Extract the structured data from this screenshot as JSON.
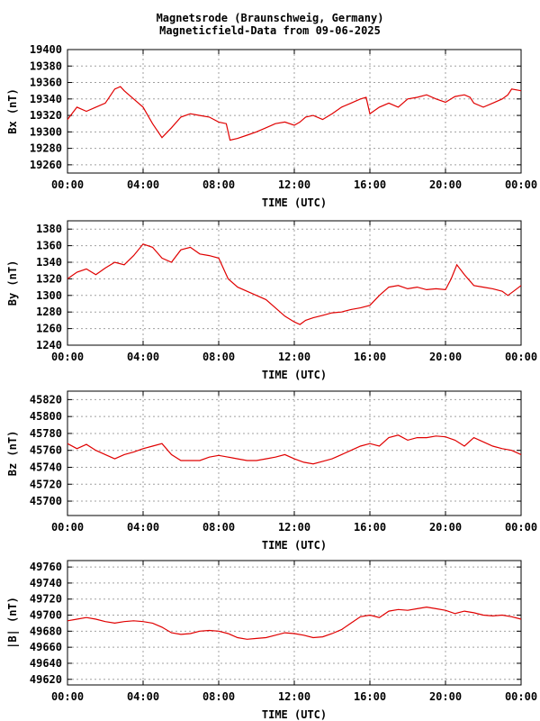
{
  "title_line1": "Magnetsrode (Braunschweig, Germany)",
  "title_line2": "Magneticfield-Data from 09-06-2025",
  "chart_data": [
    {
      "type": "line",
      "xlabel": "TIME (UTC)",
      "ylabel": "Bx (nT)",
      "x_ticks": [
        "00:00",
        "04:00",
        "08:00",
        "12:00",
        "16:00",
        "20:00",
        "00:00"
      ],
      "xlim": [
        0,
        24
      ],
      "ylim": [
        19250,
        19400
      ],
      "y_ticks": [
        19260,
        19280,
        19300,
        19320,
        19340,
        19360,
        19380,
        19400
      ],
      "grid": true,
      "color": "#e00000",
      "x": [
        0,
        0.5,
        1,
        1.5,
        2,
        2.5,
        2.8,
        3,
        3.5,
        4,
        4.5,
        5,
        5.5,
        6,
        6.5,
        7,
        7.5,
        8,
        8.4,
        8.6,
        9,
        9.5,
        10,
        10.5,
        11,
        11.5,
        12,
        12.3,
        12.6,
        13,
        13.5,
        14,
        14.5,
        15,
        15.5,
        15.8,
        16,
        16.5,
        17,
        17.5,
        18,
        18.5,
        19,
        19.5,
        20,
        20.5,
        21,
        21.3,
        21.5,
        22,
        22.5,
        23,
        23.3,
        23.5,
        24
      ],
      "y": [
        19315,
        19330,
        19325,
        19330,
        19335,
        19352,
        19355,
        19350,
        19340,
        19330,
        19310,
        19293,
        19305,
        19318,
        19322,
        19320,
        19318,
        19312,
        19310,
        19290,
        19292,
        19296,
        19300,
        19305,
        19310,
        19312,
        19308,
        19312,
        19318,
        19320,
        19315,
        19322,
        19330,
        19335,
        19340,
        19342,
        19322,
        19330,
        19335,
        19330,
        19340,
        19342,
        19345,
        19340,
        19336,
        19343,
        19345,
        19342,
        19335,
        19330,
        19335,
        19340,
        19345,
        19352,
        19350
      ]
    },
    {
      "type": "line",
      "xlabel": "TIME (UTC)",
      "ylabel": "By (nT)",
      "x_ticks": [
        "00:00",
        "04:00",
        "08:00",
        "12:00",
        "16:00",
        "20:00",
        "00:00"
      ],
      "xlim": [
        0,
        24
      ],
      "ylim": [
        1240,
        1390
      ],
      "y_ticks": [
        1240,
        1260,
        1280,
        1300,
        1320,
        1340,
        1360,
        1380
      ],
      "grid": true,
      "color": "#e00000",
      "x": [
        0,
        0.5,
        1,
        1.5,
        2,
        2.5,
        3,
        3.5,
        4,
        4.5,
        5,
        5.5,
        6,
        6.5,
        7,
        7.5,
        8,
        8.5,
        9,
        9.5,
        10,
        10.5,
        11,
        11.5,
        12,
        12.3,
        12.6,
        13,
        13.5,
        14,
        14.5,
        15,
        15.5,
        16,
        16.5,
        17,
        17.5,
        18,
        18.5,
        19,
        19.5,
        20,
        20.3,
        20.6,
        21,
        21.5,
        22,
        22.5,
        23,
        23.3,
        23.6,
        24
      ],
      "y": [
        1320,
        1328,
        1332,
        1325,
        1333,
        1340,
        1337,
        1348,
        1362,
        1358,
        1345,
        1340,
        1355,
        1358,
        1350,
        1348,
        1345,
        1320,
        1310,
        1305,
        1300,
        1295,
        1285,
        1275,
        1268,
        1265,
        1270,
        1273,
        1276,
        1279,
        1280,
        1283,
        1285,
        1288,
        1300,
        1310,
        1312,
        1308,
        1310,
        1307,
        1308,
        1307,
        1320,
        1337,
        1325,
        1312,
        1310,
        1308,
        1305,
        1300,
        1305,
        1312
      ]
    },
    {
      "type": "line",
      "xlabel": "TIME (UTC)",
      "ylabel": "Bz (nT)",
      "x_ticks": [
        "00:00",
        "04:00",
        "08:00",
        "12:00",
        "16:00",
        "20:00",
        "00:00"
      ],
      "xlim": [
        0,
        24
      ],
      "ylim": [
        45683,
        45830
      ],
      "y_ticks": [
        45700,
        45720,
        45740,
        45760,
        45780,
        45800,
        45820
      ],
      "grid": true,
      "color": "#e00000",
      "x": [
        0,
        0.5,
        1,
        1.5,
        2,
        2.5,
        3,
        3.5,
        4,
        4.5,
        5,
        5.5,
        6,
        6.5,
        7,
        7.5,
        8,
        8.5,
        9,
        9.5,
        10,
        10.5,
        11,
        11.5,
        12,
        12.5,
        13,
        13.5,
        14,
        14.5,
        15,
        15.5,
        16,
        16.5,
        17,
        17.5,
        18,
        18.5,
        19,
        19.5,
        20,
        20.5,
        21,
        21.5,
        22,
        22.5,
        23,
        23.5,
        24
      ],
      "y": [
        45768,
        45762,
        45767,
        45760,
        45755,
        45750,
        45755,
        45758,
        45762,
        45765,
        45768,
        45755,
        45748,
        45748,
        45748,
        45752,
        45754,
        45752,
        45750,
        45748,
        45748,
        45750,
        45752,
        45755,
        45750,
        45746,
        45744,
        45747,
        45750,
        45755,
        45760,
        45765,
        45768,
        45765,
        45775,
        45778,
        45772,
        45775,
        45775,
        45777,
        45776,
        45772,
        45765,
        45775,
        45770,
        45765,
        45762,
        45760,
        45755
      ]
    },
    {
      "type": "line",
      "xlabel": "TIME (UTC)",
      "ylabel": "|B| (nT)",
      "x_ticks": [
        "00:00",
        "04:00",
        "08:00",
        "12:00",
        "16:00",
        "20:00",
        "00:00"
      ],
      "xlim": [
        0,
        24
      ],
      "ylim": [
        49613,
        49768
      ],
      "y_ticks": [
        49620,
        49640,
        49660,
        49680,
        49700,
        49720,
        49740,
        49760
      ],
      "grid": true,
      "color": "#e00000",
      "x": [
        0,
        0.5,
        1,
        1.5,
        2,
        2.5,
        3,
        3.5,
        4,
        4.5,
        5,
        5.5,
        6,
        6.5,
        7,
        7.5,
        8,
        8.5,
        9,
        9.5,
        10,
        10.5,
        11,
        11.5,
        12,
        12.5,
        13,
        13.5,
        14,
        14.5,
        15,
        15.5,
        16,
        16.5,
        17,
        17.5,
        18,
        18.5,
        19,
        19.5,
        20,
        20.5,
        21,
        21.5,
        22,
        22.5,
        23,
        23.5,
        24
      ],
      "y": [
        49693,
        49695,
        49697,
        49695,
        49692,
        49690,
        49692,
        49693,
        49692,
        49690,
        49685,
        49678,
        49676,
        49677,
        49680,
        49681,
        49680,
        49677,
        49672,
        49670,
        49671,
        49672,
        49675,
        49678,
        49677,
        49675,
        49672,
        49673,
        49677,
        49682,
        49690,
        49698,
        49700,
        49697,
        49705,
        49707,
        49706,
        49708,
        49710,
        49708,
        49706,
        49702,
        49705,
        49703,
        49700,
        49699,
        49700,
        49698,
        49695
      ]
    }
  ]
}
